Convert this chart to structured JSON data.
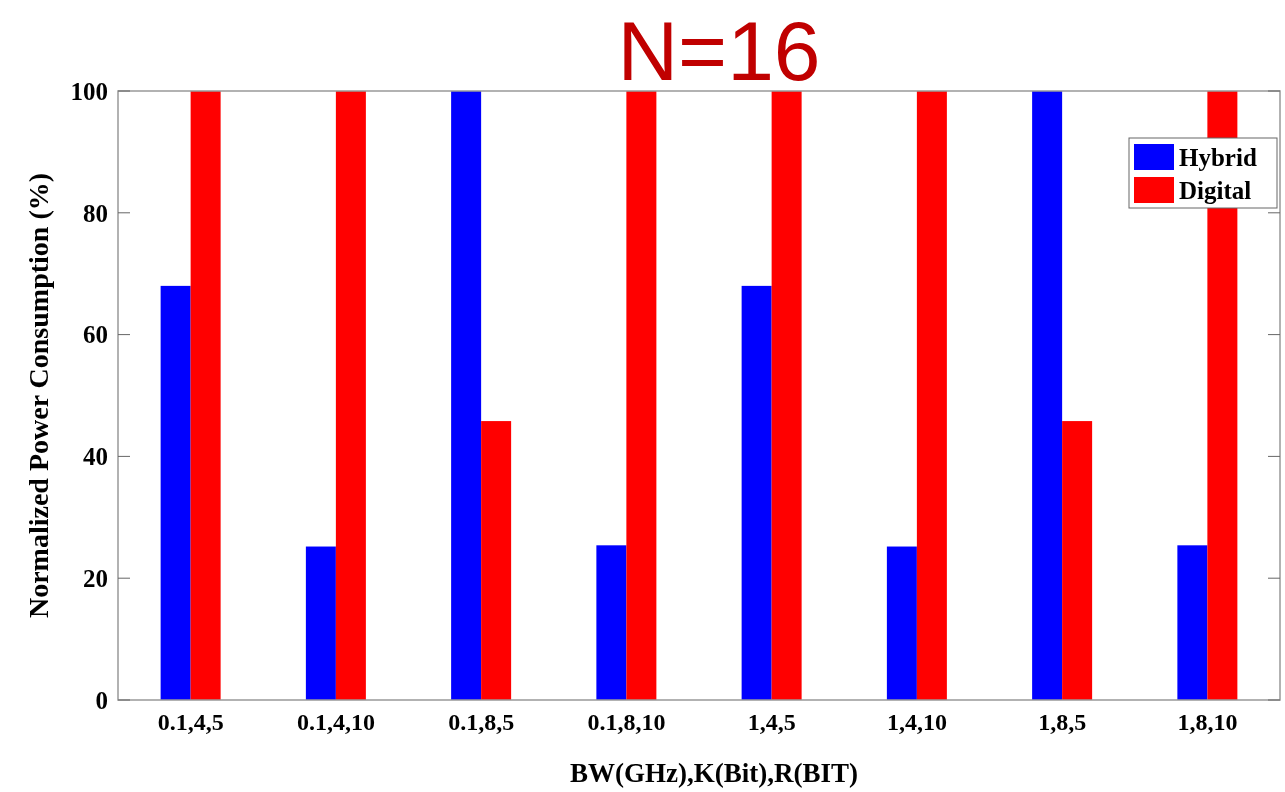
{
  "chart_data": {
    "type": "bar",
    "title": "N=16",
    "xlabel": "BW(GHz),K(Bit),R(BIT)",
    "ylabel": "Normalized Power Consumption (%)",
    "categories": [
      "0.1,4,5",
      "0.1,4,10",
      "0.1,8,5",
      "0.1,8,10",
      "1,4,5",
      "1,4,10",
      "1,8,5",
      "1,8,10"
    ],
    "series": [
      {
        "name": "Hybrid",
        "color": "#0000ff",
        "values": [
          68,
          25.2,
          100,
          25.4,
          68,
          25.2,
          100,
          25.4
        ]
      },
      {
        "name": "Digital",
        "color": "#ff0000",
        "values": [
          100,
          100,
          45.8,
          100,
          100,
          100,
          45.8,
          100
        ]
      }
    ],
    "ylim": [
      0,
      100
    ],
    "yticks": [
      0,
      20,
      40,
      60,
      80,
      100
    ],
    "grid": false,
    "legend": "top right"
  }
}
